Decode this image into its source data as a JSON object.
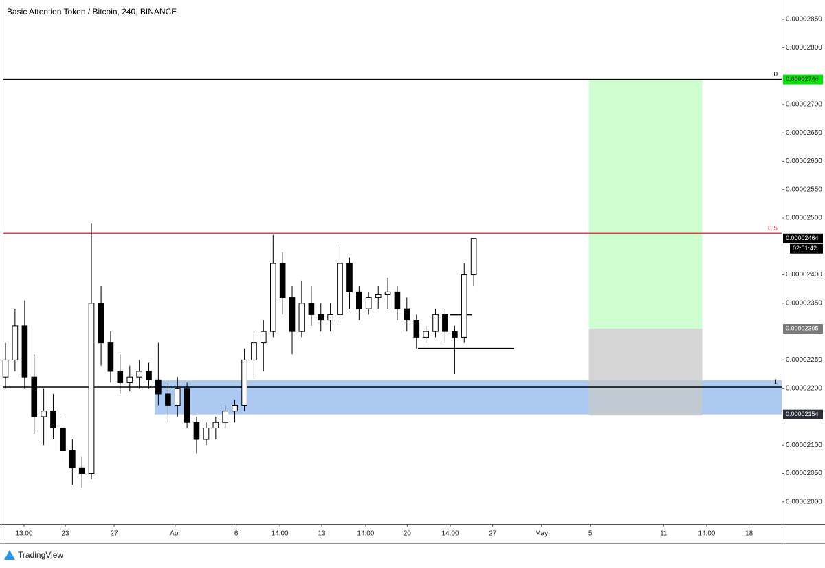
{
  "chart_data": {
    "type": "candlestick",
    "title": "Basic Attention Token / Bitcoin, 240, BINANCE",
    "brand": "TradingView",
    "x": [
      18.1,
      18.88,
      19.67,
      20.45,
      21.23,
      22.01,
      22.8,
      23.58,
      24.36,
      25.14,
      25.93,
      26.71,
      27.49,
      28.28,
      29.06,
      29.84,
      30.62,
      31.41,
      32.19,
      32.97,
      33.75,
      34.54,
      35.32,
      36.1,
      36.88,
      37.67,
      38.45,
      39.23,
      40.02,
      40.8,
      41.58,
      42.36,
      43.15,
      43.93,
      44.71,
      45.49,
      46.28,
      47.06,
      47.84,
      48.63,
      49.41,
      50.19,
      50.97,
      51.76,
      52.54,
      53.32,
      54.1,
      54.89,
      55.67,
      56.45
    ],
    "open": [
      2.22e-05,
      2.25e-05,
      2.31e-05,
      2.22e-05,
      2.15e-05,
      2.16e-05,
      2.13e-05,
      2.09e-05,
      2.06e-05,
      2.05e-05,
      2.35e-05,
      2.28e-05,
      2.23e-05,
      2.21e-05,
      2.22e-05,
      2.23e-05,
      2.215e-05,
      2.19e-05,
      2.17e-05,
      2.2e-05,
      2.14e-05,
      2.11e-05,
      2.13e-05,
      2.14e-05,
      2.16e-05,
      2.17e-05,
      2.25e-05,
      2.28e-05,
      2.3e-05,
      2.42e-05,
      2.36e-05,
      2.3e-05,
      2.35e-05,
      2.33e-05,
      2.32e-05,
      2.33e-05,
      2.42e-05,
      2.37e-05,
      2.34e-05,
      2.36e-05,
      2.365e-05,
      2.37e-05,
      2.34e-05,
      2.32e-05,
      2.29e-05,
      2.3e-05,
      2.33e-05,
      2.3e-05,
      2.29e-05,
      2.4e-05
    ],
    "high": [
      2.28e-05,
      2.34e-05,
      2.355e-05,
      2.26e-05,
      2.2e-05,
      2.19e-05,
      2.15e-05,
      2.11e-05,
      2.08e-05,
      2.49e-05,
      2.38e-05,
      2.3e-05,
      2.26e-05,
      2.24e-05,
      2.25e-05,
      2.245e-05,
      2.28e-05,
      2.21e-05,
      2.22e-05,
      2.21e-05,
      2.15e-05,
      2.14e-05,
      2.15e-05,
      2.17e-05,
      2.18e-05,
      2.27e-05,
      2.3e-05,
      2.32e-05,
      2.47e-05,
      2.44e-05,
      2.38e-05,
      2.39e-05,
      2.38e-05,
      2.35e-05,
      2.35e-05,
      2.45e-05,
      2.43e-05,
      2.38e-05,
      2.37e-05,
      2.38e-05,
      2.395e-05,
      2.38e-05,
      2.36e-05,
      2.33e-05,
      2.31e-05,
      2.34e-05,
      2.34e-05,
      2.31e-05,
      2.42e-05,
      2.46e-05
    ],
    "low": [
      2.2e-05,
      2.23e-05,
      2.2e-05,
      2.12e-05,
      2.1e-05,
      2.11e-05,
      2.07e-05,
      2.03e-05,
      2.025e-05,
      2.04e-05,
      2.24e-05,
      2.21e-05,
      2.19e-05,
      2.195e-05,
      2.2e-05,
      2.2e-05,
      2.17e-05,
      2.14e-05,
      2.15e-05,
      2.13e-05,
      2.085e-05,
      2.1e-05,
      2.11e-05,
      2.13e-05,
      2.14e-05,
      2.16e-05,
      2.22e-05,
      2.23e-05,
      2.29e-05,
      2.33e-05,
      2.26e-05,
      2.29e-05,
      2.31e-05,
      2.3e-05,
      2.3e-05,
      2.32e-05,
      2.34e-05,
      2.32e-05,
      2.33e-05,
      2.34e-05,
      2.34e-05,
      2.32e-05,
      2.3e-05,
      2.27e-05,
      2.28e-05,
      2.29e-05,
      2.28e-05,
      2.225e-05,
      2.28e-05,
      2.38e-05
    ],
    "close": [
      2.25e-05,
      2.31e-05,
      2.22e-05,
      2.15e-05,
      2.16e-05,
      2.13e-05,
      2.09e-05,
      2.06e-05,
      2.05e-05,
      2.35e-05,
      2.28e-05,
      2.23e-05,
      2.21e-05,
      2.22e-05,
      2.23e-05,
      2.215e-05,
      2.19e-05,
      2.17e-05,
      2.2e-05,
      2.14e-05,
      2.11e-05,
      2.13e-05,
      2.14e-05,
      2.16e-05,
      2.17e-05,
      2.25e-05,
      2.28e-05,
      2.3e-05,
      2.42e-05,
      2.36e-05,
      2.3e-05,
      2.35e-05,
      2.33e-05,
      2.32e-05,
      2.33e-05,
      2.42e-05,
      2.37e-05,
      2.34e-05,
      2.36e-05,
      2.365e-05,
      2.37e-05,
      2.34e-05,
      2.32e-05,
      2.29e-05,
      2.3e-05,
      2.33e-05,
      2.3e-05,
      2.29e-05,
      2.4e-05,
      2.464e-05
    ],
    "up_color": "#ffffff",
    "down_color": "#000000",
    "xlim": [
      17.93,
      81.67
    ],
    "ylim": [
      1.961e-05,
      2.884e-05
    ],
    "xticks": [
      {
        "value": 19.62,
        "label": "13:00"
      },
      23,
      27,
      {
        "value": 32,
        "label": "Apr"
      },
      {
        "value": 37,
        "label": "6"
      },
      {
        "value": 40.57,
        "label": "14:00"
      },
      {
        "value": 44,
        "label": "13"
      },
      {
        "value": 47.6,
        "label": "14:00"
      },
      {
        "value": 51,
        "label": "20"
      },
      {
        "value": 54.53,
        "label": "14:00"
      },
      {
        "value": 58,
        "label": "27"
      },
      {
        "value": 62,
        "label": "May"
      },
      {
        "value": 66,
        "label": "5"
      },
      {
        "value": 72,
        "label": "11"
      },
      {
        "value": 75.53,
        "label": "14:00"
      },
      {
        "value": 79,
        "label": "18"
      }
    ],
    "yticks": [
      {
        "value": 2.85e-05,
        "label": "0.00002850"
      },
      {
        "value": 2.8e-05,
        "label": "0.00002800"
      },
      {
        "value": 2.7e-05,
        "label": "0.00002700"
      },
      {
        "value": 2.65e-05,
        "label": "0.00002650"
      },
      {
        "value": 2.6e-05,
        "label": "0.00002600"
      },
      {
        "value": 2.55e-05,
        "label": "0.00002550"
      },
      {
        "value": 2.5e-05,
        "label": "0.00002500"
      },
      {
        "value": 2.4e-05,
        "label": "0.00002400"
      },
      {
        "value": 2.35e-05,
        "label": "0.00002350"
      },
      {
        "value": 2.25e-05,
        "label": "0.00002250"
      },
      {
        "value": 2.2e-05,
        "label": "0.00002200"
      },
      {
        "value": 2.1e-05,
        "label": "0.00002100"
      },
      {
        "value": 2.05e-05,
        "label": "0.00002050"
      },
      {
        "value": 2e-05,
        "label": "0.00002000"
      }
    ],
    "zones": [
      {
        "x": [
          30.32,
          81.67
        ],
        "y": [
          2.154e-05,
          2.214e-05
        ],
        "color": "#90b8ec"
      },
      {
        "x": [
          65.88,
          75.17
        ],
        "y": [
          2.305e-05,
          2.744e-05
        ],
        "color": "#bdfdc0"
      },
      {
        "x": [
          65.88,
          75.17
        ],
        "y": [
          2.152e-05,
          2.305e-05
        ],
        "color": "#c8c8c8"
      }
    ],
    "hlines": [
      {
        "value": 2.744e-05,
        "label": "0",
        "color": "#000000"
      },
      {
        "value": 2.473e-05,
        "label": "0.5",
        "color": "#f23645"
      },
      {
        "value": 2.202e-05,
        "label": "1",
        "color": "#000000"
      }
    ],
    "segments": [
      {
        "x": [
          51.88,
          59.77
        ],
        "y": 2.27e-05
      },
      {
        "x": [
          54.53,
          56.28
        ],
        "y": 2.33e-05
      }
    ],
    "price_tags": [
      {
        "value": 2.744e-05,
        "label": "0.00002744",
        "color": "#00e600",
        "text_color": "#000000"
      },
      {
        "value": 2.464e-05,
        "label": "0.00002464",
        "color": "#000000",
        "text_color": "#ffffff"
      },
      {
        "value": 2.305e-05,
        "label": "0.00002305",
        "color": "#7a7a7a",
        "text_color": "#ffffff"
      },
      {
        "value": 2.154e-05,
        "label": "0.00002154",
        "color": "#2a2e39",
        "text_color": "#ffffff"
      }
    ],
    "countdown": "02:51:42"
  }
}
